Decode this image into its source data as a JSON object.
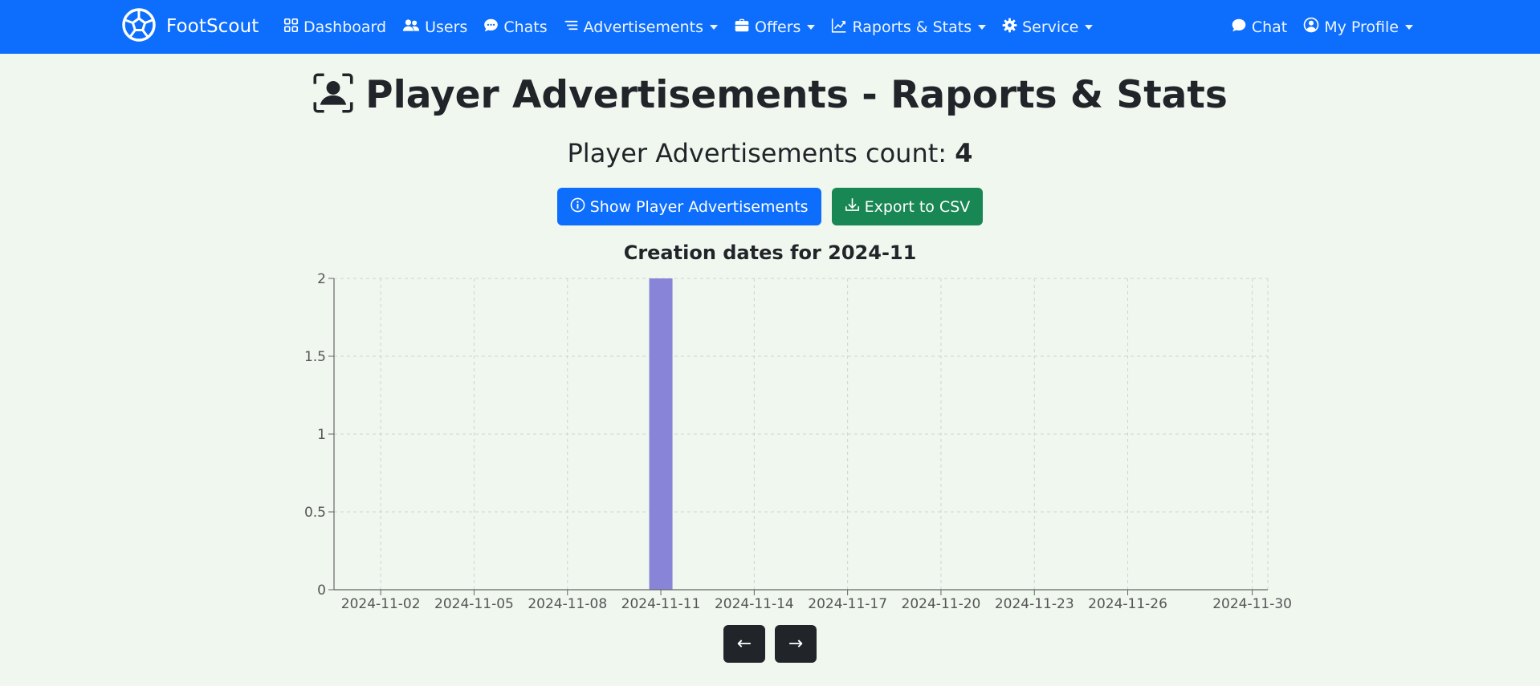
{
  "navbar": {
    "brand": "FootScout",
    "items": [
      {
        "label": "Dashboard",
        "icon": "grid-icon"
      },
      {
        "label": "Users",
        "icon": "people-icon"
      },
      {
        "label": "Chats",
        "icon": "chat-dots-icon"
      },
      {
        "label": "Advertisements",
        "icon": "text-lines-icon",
        "dropdown": true
      },
      {
        "label": "Offers",
        "icon": "briefcase-icon",
        "dropdown": true
      },
      {
        "label": "Raports & Stats",
        "icon": "graph-up-icon",
        "dropdown": true
      },
      {
        "label": "Service",
        "icon": "gear-icon",
        "dropdown": true
      }
    ],
    "right_items": [
      {
        "label": "Chat",
        "icon": "chat-icon"
      },
      {
        "label": "My Profile",
        "icon": "person-circle-icon",
        "dropdown": true
      }
    ],
    "background": "#0d6efd"
  },
  "page": {
    "title": "Player Advertisements - Raports & Stats",
    "count_label": "Player Advertisements count:",
    "count_value": "4",
    "show_button": "Show Player Advertisements",
    "export_button": "Export to CSV",
    "prev_button": "←",
    "next_button": "→"
  },
  "chart_data": {
    "type": "bar",
    "title": "Creation dates for 2024-11",
    "x_ticks": [
      "2024-11-02",
      "2024-11-05",
      "2024-11-08",
      "2024-11-11",
      "2024-11-14",
      "2024-11-17",
      "2024-11-20",
      "2024-11-23",
      "2024-11-26",
      "2024-11-30"
    ],
    "x_range": [
      "2024-11-01",
      "2024-11-30"
    ],
    "points": [
      {
        "date": "2024-11-11",
        "value": 2
      }
    ],
    "y_ticks": [
      0,
      0.5,
      1,
      1.5,
      2
    ],
    "ylim": [
      0,
      2
    ],
    "grid": true,
    "bar_color": "#8884d8"
  }
}
